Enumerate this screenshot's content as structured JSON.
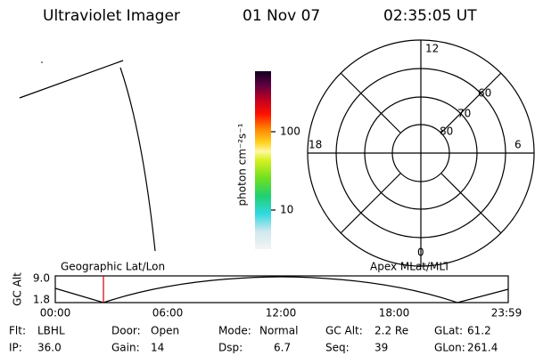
{
  "header": {
    "title": "Ultraviolet Imager",
    "date": "01 Nov 07",
    "time": "02:35:05 UT"
  },
  "colorbar": {
    "label": "photon cm⁻²s⁻¹",
    "ticks": [
      "100",
      "10"
    ]
  },
  "polar_plot": {
    "mlt_labels": [
      "12",
      "18",
      "6",
      "0"
    ],
    "mlat_labels": [
      "60",
      "70",
      "80"
    ]
  },
  "orbit_plot": {
    "left_label": "Geographic Lat/Lon",
    "right_label": "Apex MLat/MLT",
    "y_axis_label": "GC Alt",
    "y_ticks": [
      "9.0",
      "1.8"
    ],
    "x_ticks": [
      "00:00",
      "06:00",
      "12:00",
      "18:00",
      "23:59"
    ]
  },
  "info": [
    [
      {
        "label": "Flt:",
        "value": "LBHL"
      },
      {
        "label": "Door:",
        "value": "Open"
      },
      {
        "label": "Mode:",
        "value": "Normal"
      },
      {
        "label": "GC Alt:",
        "value": "2.2 Re"
      },
      {
        "label": "GLat:",
        "value": "61.2"
      }
    ],
    [
      {
        "label": "IP:",
        "value": "36.0"
      },
      {
        "label": "Gain:",
        "value": "14"
      },
      {
        "label": "Dsp:",
        "value": "6.7"
      },
      {
        "label": "Seq:",
        "value": "39"
      },
      {
        "label": "GLon:",
        "value": "261.4"
      }
    ]
  ]
}
